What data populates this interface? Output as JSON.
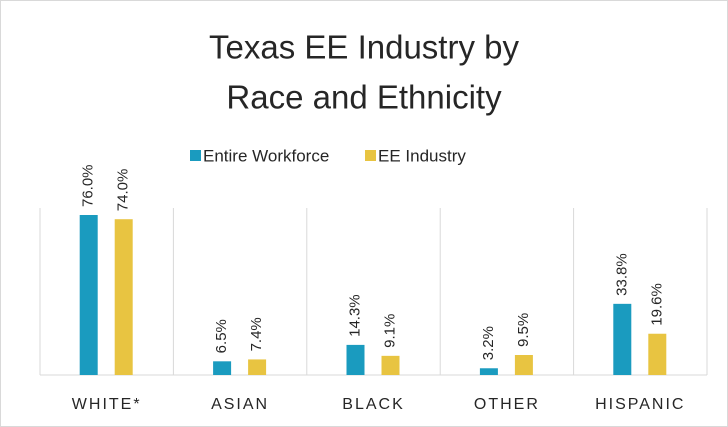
{
  "chart_data": {
    "type": "bar",
    "title": [
      "Texas EE Industry by",
      "Race and Ethnicity"
    ],
    "categories": [
      "WHITE*",
      "ASIAN",
      "BLACK",
      "OTHER",
      "HISPANIC"
    ],
    "series": [
      {
        "name": "Entire Workforce",
        "color": "#1a9bbf",
        "values": [
          76.0,
          6.5,
          14.3,
          3.2,
          33.8
        ],
        "value_labels": [
          "76.0%",
          "6.5%",
          "14.3%",
          "3.2%",
          "33.8%"
        ]
      },
      {
        "name": "EE Industry",
        "color": "#e8c441",
        "values": [
          74.0,
          7.4,
          9.1,
          9.5,
          19.6
        ],
        "value_labels": [
          "74.0%",
          "7.4%",
          "9.1%",
          "9.5%",
          "19.6%"
        ]
      }
    ]
  }
}
